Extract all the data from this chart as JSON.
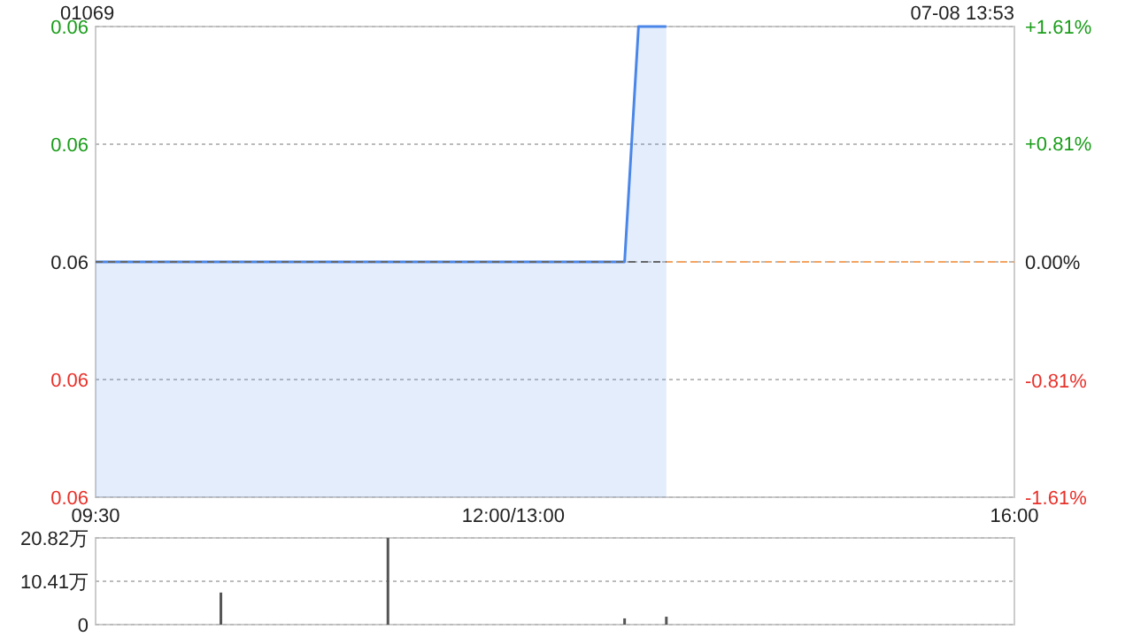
{
  "chart_data": [
    {
      "type": "line",
      "title": "01069",
      "subtitle": "07-08 13:53",
      "categories": [
        "09:30",
        null,
        null,
        null,
        null,
        null,
        null,
        null,
        null,
        null,
        null,
        null,
        null,
        null,
        null,
        null,
        null,
        null,
        null,
        null,
        null,
        null,
        null,
        null,
        null,
        null,
        null,
        null,
        null,
        null,
        "12:00/13:00",
        null,
        null,
        null,
        null,
        null,
        null,
        null,
        null,
        null,
        null,
        null,
        null,
        null,
        null,
        null,
        null,
        null,
        null,
        null,
        null,
        null,
        null,
        null,
        null,
        null,
        null,
        null,
        null,
        null,
        null,
        null,
        null,
        null,
        null,
        null,
        "16:00"
      ],
      "ylim": [
        0.061,
        0.063
      ],
      "yticks": [
        {
          "value": 0.061,
          "label": "0.06"
        },
        {
          "value": 0.0615,
          "label": "0.06"
        },
        {
          "value": 0.062,
          "label": "0.06"
        },
        {
          "value": 0.0625,
          "label": "0.06"
        },
        {
          "value": 0.063,
          "label": "0.06"
        }
      ],
      "y2lim": [
        -1.61,
        1.61
      ],
      "y2ticks": [
        {
          "value": -1.61,
          "label": "-1.61%"
        },
        {
          "value": -0.81,
          "label": "-0.81%"
        },
        {
          "value": 0,
          "label": "0.00%"
        },
        {
          "value": 0.81,
          "label": "+0.81%"
        },
        {
          "value": 1.61,
          "label": "+1.61%"
        }
      ],
      "grid": "y",
      "series": [
        {
          "type": "area",
          "color": "#4a86e8",
          "values": [
            0.062,
            0.062,
            0.062,
            0.062,
            0.062,
            0.062,
            0.062,
            0.062,
            0.062,
            0.062,
            0.062,
            0.062,
            0.062,
            0.062,
            0.062,
            0.062,
            0.062,
            0.062,
            0.062,
            0.062,
            0.062,
            0.062,
            0.062,
            0.062,
            0.062,
            0.062,
            0.062,
            0.062,
            0.062,
            0.062,
            0.062,
            0.062,
            0.062,
            0.062,
            0.062,
            0.062,
            0.062,
            0.062,
            0.062,
            0.063,
            0.063,
            0.063,
            null,
            null,
            null,
            null,
            null,
            null,
            null,
            null,
            null,
            null,
            null,
            null,
            null,
            null,
            null,
            null,
            null,
            null,
            null,
            null,
            null,
            null,
            null,
            null,
            null
          ]
        },
        {
          "type": "line",
          "color": "#666666",
          "line_style": "dashed",
          "values": [
            0.062,
            0.062,
            0.062,
            0.062,
            0.062,
            0.062,
            0.062,
            0.062,
            0.062,
            0.062,
            0.062,
            0.062,
            0.062,
            0.062,
            0.062,
            0.062,
            0.062,
            0.062,
            0.062,
            0.062,
            0.062,
            0.062,
            0.062,
            0.062,
            0.062,
            0.062,
            0.062,
            0.062,
            0.062,
            0.062,
            0.062,
            0.062,
            0.062,
            0.062,
            0.062,
            0.062,
            0.062,
            0.062,
            0.062,
            0.062,
            0.062,
            0.062,
            null,
            null,
            null,
            null,
            null,
            null,
            null,
            null,
            null,
            null,
            null,
            null,
            null,
            null,
            null,
            null,
            null,
            null,
            null,
            null,
            null,
            null,
            null,
            null,
            null
          ]
        }
      ],
      "ref_lines": [
        {
          "axis": "y",
          "value": 0.062,
          "color": "#f4a460",
          "line_style": "dashed"
        }
      ]
    },
    {
      "type": "bar",
      "categories": [
        null,
        null,
        null,
        null,
        null,
        null,
        null,
        null,
        null,
        null,
        null,
        null,
        null,
        null,
        null,
        null,
        null,
        null,
        null,
        null,
        null,
        null,
        null,
        null,
        null,
        null,
        null,
        null,
        null,
        null,
        null,
        null,
        null,
        null,
        null,
        null,
        null,
        null,
        null,
        null,
        null,
        null,
        null,
        null,
        null,
        null,
        null,
        null,
        null,
        null,
        null,
        null,
        null,
        null,
        null,
        null,
        null,
        null,
        null,
        null,
        null,
        null,
        null,
        null,
        null,
        null,
        null
      ],
      "ylim": [
        0,
        20.82
      ],
      "yticks": [
        0,
        {
          "value": 10.41,
          "label": "10.41万"
        },
        {
          "value": 20.82,
          "label": "20.82万"
        }
      ],
      "grid": "y",
      "tick_labels": "y",
      "color": "#555555",
      "values": [
        null,
        null,
        null,
        null,
        null,
        null,
        null,
        null,
        null,
        7.7,
        null,
        null,
        null,
        null,
        null,
        null,
        null,
        null,
        null,
        null,
        null,
        20.8,
        null,
        null,
        null,
        null,
        null,
        null,
        null,
        null,
        null,
        null,
        null,
        null,
        null,
        null,
        null,
        null,
        1.5,
        null,
        null,
        1.9,
        null,
        null,
        null,
        null,
        null,
        null,
        null,
        null,
        null,
        null,
        null,
        null,
        null,
        null,
        null,
        null,
        null,
        null,
        null,
        null,
        null,
        null,
        null,
        null,
        null
      ]
    }
  ]
}
